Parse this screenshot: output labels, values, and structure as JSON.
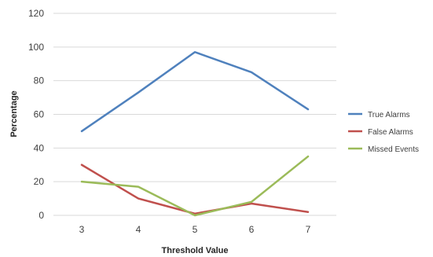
{
  "chart_data": {
    "type": "line",
    "title": "",
    "xlabel": "Threshold  Value",
    "ylabel": "Percentage",
    "x": [
      "3",
      "4",
      "5",
      "6",
      "7"
    ],
    "ylim": [
      0,
      120
    ],
    "yticks": [
      "0",
      "20",
      "40",
      "60",
      "80",
      "100",
      "120"
    ],
    "grid": "horizontal",
    "legend_position": "right",
    "series": [
      {
        "name": "True Alarms",
        "color": "#4F81BD",
        "values": [
          50,
          73,
          97,
          85,
          63
        ]
      },
      {
        "name": "False Alarms",
        "color": "#C0504D",
        "values": [
          30,
          10,
          1,
          7,
          2
        ]
      },
      {
        "name": "Missed Events",
        "color": "#9BBB59",
        "values": [
          20,
          17,
          0,
          8,
          35
        ]
      }
    ]
  }
}
